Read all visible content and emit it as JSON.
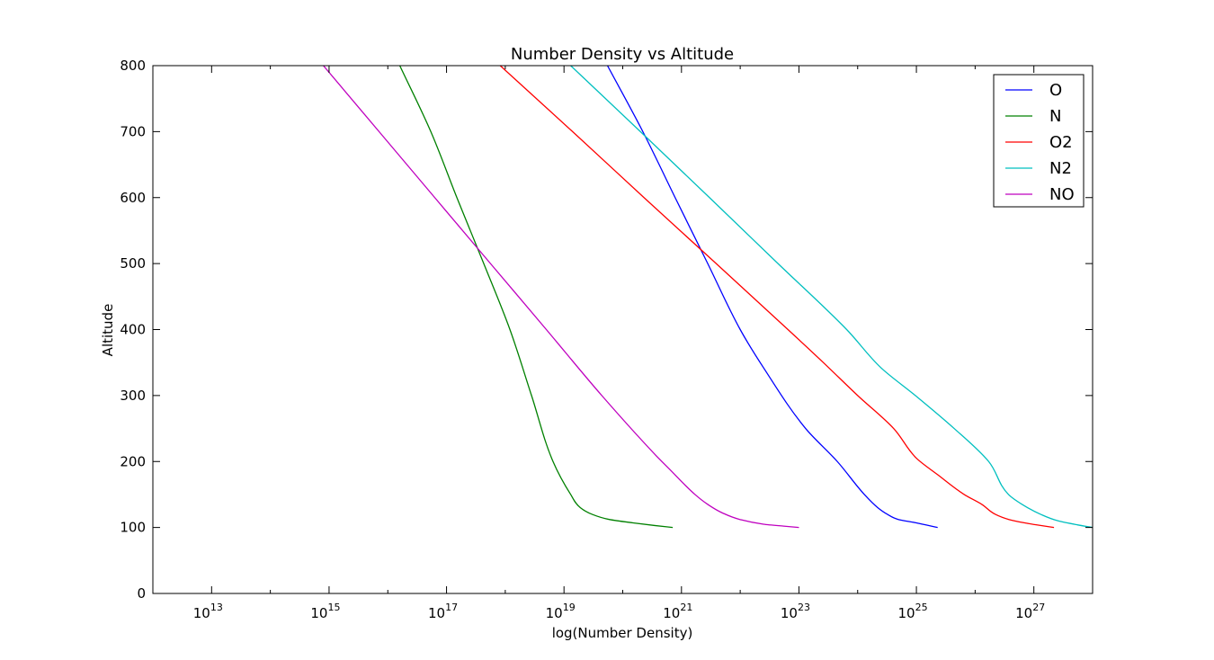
{
  "chart_data": {
    "type": "line",
    "title": "Number Density vs Altitude",
    "xlabel": "log(Number Density)",
    "ylabel": "Altitude",
    "xscale": "log",
    "xlim": [
      1000000000000.0,
      1e+28
    ],
    "ylim": [
      0,
      800
    ],
    "xticks": [
      {
        "value": 10000000000000.0,
        "base": "10",
        "exp": "13"
      },
      {
        "value": 1000000000000000.0,
        "base": "10",
        "exp": "15"
      },
      {
        "value": 1e+17,
        "base": "10",
        "exp": "17"
      },
      {
        "value": 1e+19,
        "base": "10",
        "exp": "19"
      },
      {
        "value": 1e+21,
        "base": "10",
        "exp": "21"
      },
      {
        "value": 1e+23,
        "base": "10",
        "exp": "23"
      },
      {
        "value": 1e+25,
        "base": "10",
        "exp": "25"
      },
      {
        "value": 1e+27,
        "base": "10",
        "exp": "27"
      }
    ],
    "yticks": [
      "0",
      "100",
      "200",
      "300",
      "400",
      "500",
      "600",
      "700",
      "800"
    ],
    "grid": false,
    "legend_position": "top-right",
    "series": [
      {
        "name": "O",
        "color": "#0000ff",
        "points": [
          [
            2.3e+25,
            100
          ],
          [
            1.6e+25,
            103
          ],
          [
            1e+25,
            107
          ],
          [
            5e+24,
            112
          ],
          [
            3.2e+24,
            120
          ],
          [
            2.2e+24,
            130
          ],
          [
            1.3e+24,
            150
          ],
          [
            4.5e+23,
            200
          ],
          [
            1.3e+23,
            250
          ],
          [
            2.5e+22,
            342
          ],
          [
            1e+22,
            400
          ],
          [
            2.8e+21,
            500
          ],
          [
            7.8e+20,
            600
          ],
          [
            2.2e+20,
            700
          ],
          [
            5.5e+19,
            800
          ]
        ]
      },
      {
        "name": "N",
        "color": "#008000",
        "points": [
          [
            7.1e+20,
            100
          ],
          [
            3.5e+20,
            103
          ],
          [
            1.5e+20,
            107
          ],
          [
            6e+19,
            112
          ],
          [
            3e+19,
            120
          ],
          [
            1.9e+19,
            130
          ],
          [
            1.3e+19,
            150
          ],
          [
            6.5e+18,
            200
          ],
          [
            2.8e+18,
            300
          ],
          [
            1.2e+18,
            400
          ],
          [
            4.3e+17,
            500
          ],
          [
            1.5e+17,
            600
          ],
          [
            5.4e+16,
            700
          ],
          [
            1.6e+16,
            800
          ]
        ]
      },
      {
        "name": "O2",
        "color": "#ff0000",
        "points": [
          [
            2.2e+27,
            100
          ],
          [
            1.3e+27,
            103
          ],
          [
            7e+26,
            107
          ],
          [
            3.8e+26,
            112
          ],
          [
            2.2e+26,
            120
          ],
          [
            1.3e+26,
            135
          ],
          [
            6.5e+25,
            150
          ],
          [
            2.3e+25,
            180
          ],
          [
            1e+25,
            205
          ],
          [
            4.1e+24,
            250
          ],
          [
            1e+24,
            300
          ],
          [
            2.6e+23,
            350
          ],
          [
            6.5e+22,
            400
          ],
          [
            3.9e+21,
            500
          ],
          [
            2.3e+20,
            600
          ],
          [
            1.4e+19,
            700
          ],
          [
            8.2e+17,
            800
          ]
        ]
      },
      {
        "name": "N2",
        "color": "#00bfbf",
        "points": [
          [
            1e+28,
            100
          ],
          [
            5.5e+27,
            104
          ],
          [
            2.6e+27,
            110
          ],
          [
            1.3e+27,
            120
          ],
          [
            6.3e+26,
            135
          ],
          [
            3.7e+26,
            150
          ],
          [
            1.7e+26,
            200
          ],
          [
            4.4e+25,
            250
          ],
          [
            9.6e+24,
            300
          ],
          [
            2.5e+24,
            342
          ],
          [
            6.5e+23,
            400
          ],
          [
            4.4e+22,
            500
          ],
          [
            3e+21,
            600
          ],
          [
            2e+20,
            700
          ],
          [
            1.3e+19,
            800
          ]
        ]
      },
      {
        "name": "NO",
        "color": "#bf00bf",
        "points": [
          [
            1e+23,
            100
          ],
          [
            5.5e+22,
            102
          ],
          [
            2.5e+22,
            105
          ],
          [
            1e+22,
            112
          ],
          [
            5e+21,
            122
          ],
          [
            2.8e+21,
            135
          ],
          [
            1.7e+21,
            150
          ],
          [
            6e+20,
            190
          ],
          [
            3.6e+20,
            210
          ],
          [
            4.4e+19,
            300
          ],
          [
            5e+18,
            400
          ],
          [
            5.6e+17,
            500
          ],
          [
            6.3e+16,
            600
          ],
          [
            7100000000000000.0,
            700
          ],
          [
            800000000000000.0,
            800
          ]
        ]
      }
    ]
  }
}
